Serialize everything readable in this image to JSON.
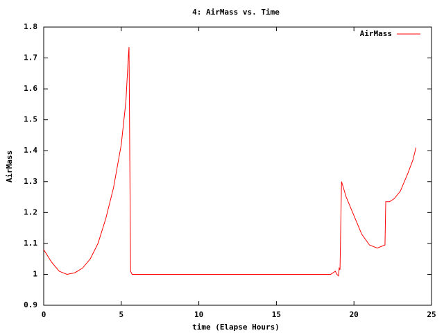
{
  "chart_data": {
    "type": "line",
    "title": "4: AirMass vs. Time",
    "x_label": "time (Elapse Hours)",
    "y_label": "AirMass",
    "x": [
      0,
      0.5,
      1,
      1.5,
      2,
      2.5,
      3,
      3.5,
      4,
      4.5,
      5,
      5.3,
      5.45,
      5.5,
      5.6,
      5.7,
      10,
      15,
      18.5,
      18.8,
      18.9,
      19.0,
      19.05,
      19.1,
      19.2,
      19.5,
      20,
      20.5,
      21,
      21.5,
      22,
      22.05,
      22.3,
      22.6,
      23,
      23.5,
      23.8,
      24
    ],
    "series": [
      {
        "name": "AirMass",
        "color": "#ff0000",
        "values": [
          1.08,
          1.04,
          1.01,
          1.0,
          1.005,
          1.02,
          1.05,
          1.1,
          1.18,
          1.28,
          1.42,
          1.56,
          1.7,
          1.735,
          1.01,
          1.0,
          1.0,
          1.0,
          1.0,
          1.01,
          1.0,
          0.995,
          1.02,
          1.015,
          1.3,
          1.25,
          1.19,
          1.13,
          1.095,
          1.085,
          1.095,
          1.235,
          1.235,
          1.245,
          1.27,
          1.33,
          1.37,
          1.41
        ]
      }
    ],
    "xlim": [
      0,
      25
    ],
    "xticks": [
      0,
      5,
      10,
      15,
      20,
      25
    ],
    "ylim": [
      0.9,
      1.8
    ],
    "yticks": [
      0.9,
      1,
      1.1,
      1.2,
      1.3,
      1.4,
      1.5,
      1.6,
      1.7,
      1.8
    ],
    "legend": "top-right",
    "grid": false
  }
}
